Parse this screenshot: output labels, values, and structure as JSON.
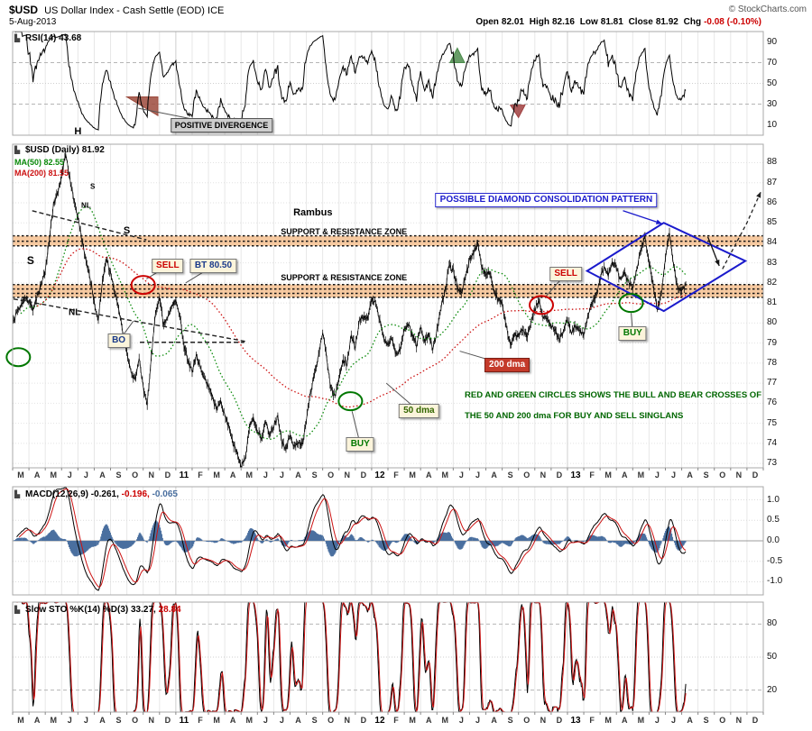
{
  "header": {
    "symbol": "$USD",
    "description": "US Dollar Index - Cash Settle (EOD)",
    "exchange": "ICE",
    "copyright": "© StockCharts.com",
    "date": "5-Aug-2013",
    "ohlc": {
      "open_label": "Open",
      "open": "82.01",
      "high_label": "High",
      "high": "82.16",
      "low_label": "Low",
      "low": "81.81",
      "close_label": "Close",
      "close": "81.92",
      "chg_label": "Chg",
      "chg": "-0.08 (-0.10%)"
    }
  },
  "icons": {
    "panel": "▙"
  },
  "legends": {
    "rsi": {
      "name": "RSI(14)",
      "val": "43.68"
    },
    "price": {
      "name": "$USD (Daily)",
      "val": "81.92"
    },
    "ma50": "MA(50) 82.55",
    "ma200": "MA(200) 81.55",
    "macd": {
      "name": "MACD(12,26,9)",
      "v1": "-0.261,",
      "v2": "-0.196,",
      "v3": "-0.065"
    },
    "sto": {
      "name": "Slow STO %K(14) %D(3)",
      "v1": "33.27,",
      "v2": "28.84"
    }
  },
  "chart_data": {
    "type": "line",
    "title": "$USD US Dollar Index - Cash Settle (EOD) ICE",
    "x_months": [
      "M",
      "A",
      "M",
      "J",
      "J",
      "A",
      "S",
      "O",
      "N",
      "D",
      "11",
      "F",
      "M",
      "A",
      "M",
      "J",
      "J",
      "A",
      "S",
      "O",
      "N",
      "D",
      "12",
      "F",
      "M",
      "A",
      "M",
      "J",
      "J",
      "A",
      "S",
      "O",
      "N",
      "D",
      "13",
      "F",
      "M",
      "A",
      "M",
      "J",
      "J",
      "A",
      "S",
      "O",
      "N",
      "D"
    ],
    "samples_per_month": 4,
    "price_weekly_close": [
      80.0,
      80.5,
      80.9,
      81.3,
      81.1,
      80.7,
      81.3,
      81.9,
      82.6,
      84.2,
      85.9,
      86.5,
      87.3,
      88.5,
      87.2,
      86.2,
      85.3,
      84.1,
      83.1,
      82.3,
      81.0,
      80.2,
      82.1,
      83.2,
      82.5,
      81.6,
      80.7,
      79.6,
      78.5,
      77.6,
      77.1,
      78.2,
      76.8,
      75.9,
      78.3,
      80.5,
      81.3,
      79.9,
      80.3,
      80.9,
      81.1,
      80.3,
      78.9,
      78.1,
      77.6,
      78.4,
      77.8,
      77.2,
      76.9,
      76.3,
      75.7,
      76.1,
      75.4,
      74.8,
      74.0,
      73.5,
      72.9,
      73.2,
      74.8,
      75.3,
      74.6,
      74.2,
      75.1,
      74.4,
      74.9,
      75.3,
      74.1,
      73.7,
      74.4,
      73.8,
      74.1,
      73.9,
      75.2,
      76.5,
      77.5,
      78.3,
      79.6,
      78.2,
      76.8,
      76.3,
      77.2,
      78.1,
      78.0,
      79.4,
      78.8,
      80.1,
      80.3,
      80.2,
      81.2,
      81.0,
      80.1,
      79.2,
      78.9,
      79.2,
      78.4,
      78.7,
      79.7,
      80.0,
      79.4,
      78.9,
      79.8,
      79.1,
      79.4,
      78.7,
      79.6,
      80.8,
      81.6,
      82.9,
      82.6,
      81.8,
      81.5,
      82.3,
      83.2,
      83.5,
      84.0,
      82.8,
      82.4,
      82.6,
      81.5,
      81.2,
      81.0,
      79.8,
      78.9,
      79.4,
      79.4,
      79.7,
      79.3,
      80.0,
      80.7,
      81.1,
      80.3,
      80.2,
      79.9,
      79.6,
      79.2,
      79.6,
      80.2,
      79.5,
      79.8,
      79.6,
      79.4,
      80.3,
      81.0,
      81.4,
      82.2,
      82.8,
      82.4,
      83.0,
      82.8,
      82.1,
      82.6,
      82.0,
      81.8,
      82.7,
      83.7,
      84.3,
      83.0,
      81.9,
      80.7,
      81.4,
      83.3,
      84.5,
      82.9,
      81.8,
      81.6,
      81.92
    ],
    "price_ylim": [
      72.78,
      88.92
    ],
    "price_ticks": [
      88,
      87,
      86,
      85,
      84,
      83,
      82,
      81,
      80,
      79,
      78,
      77,
      76,
      75,
      74,
      73
    ],
    "rsi": {
      "period": 14,
      "value": 43.68,
      "ticks": [
        90,
        70,
        50,
        30,
        10
      ]
    },
    "ma50": {
      "period": 50,
      "value": 82.55
    },
    "ma200": {
      "period": 200,
      "value": 81.55
    },
    "macd": {
      "fast": 12,
      "slow": 26,
      "signal": 9,
      "values": [
        -0.261,
        -0.196,
        -0.065
      ],
      "ticks": [
        "1.0",
        "0.5",
        "0.0",
        "-0.5",
        "-1.0"
      ]
    },
    "sto": {
      "k": 14,
      "d": 3,
      "values": [
        33.27,
        28.84
      ],
      "ticks": [
        80,
        50,
        20
      ]
    },
    "colors": {
      "zone": "#F6C9A0",
      "ma50": "#0B8A0B",
      "ma200": "#CC1111",
      "macd_hist": "#4A6F9F",
      "diamond": "#1A1ACC",
      "sell": "#CC0000",
      "buy": "#007700",
      "chg_negative": "#CC0000"
    },
    "zones": [
      {
        "from": 84.35,
        "to": 83.85,
        "lines": [
          84.35,
          84.08,
          83.85
        ]
      },
      {
        "from": 81.92,
        "to": 81.28,
        "lines": [
          81.92,
          81.7,
          81.48,
          81.28
        ]
      }
    ],
    "annotations": {
      "zone_labels": [
        {
          "t": "SUPPORT & RESISTANCE ZONE",
          "m": 20.3,
          "p": 84.55
        },
        {
          "t": "SUPPORT & RESISTANCE ZONE",
          "m": 20.3,
          "p": 82.28
        }
      ],
      "diamond": [
        [
          35.2,
          82.6
        ],
        [
          39.9,
          85.0
        ],
        [
          44.9,
          83.1
        ],
        [
          39.9,
          80.6
        ]
      ],
      "diamond_label": {
        "t": "POSSIBLE DIAMOND CONSOLIDATION PATTERN",
        "m": 32.7,
        "p": 86.15
      },
      "trendlines": [
        [
          [
            1.2,
            85.6
          ],
          [
            8.2,
            84.15
          ]
        ],
        [
          [
            0.05,
            81.2
          ],
          [
            14.3,
            79.08
          ]
        ],
        [
          [
            7.8,
            79.04
          ],
          [
            14.2,
            79.04
          ]
        ]
      ],
      "arrows": [
        {
          "pts": [
            [
              43.5,
              82.7
            ],
            [
              45.0,
              85.0
            ],
            [
              45.85,
              86.55
            ]
          ],
          "dash": true,
          "c": "#222222",
          "name": "projection-arrow"
        },
        {
          "pts": [
            [
              42.6,
              84.3
            ],
            [
              43.3,
              82.85
            ]
          ],
          "dash": false,
          "c": "#111111",
          "name": "pullback-arrow"
        },
        {
          "pts": [
            [
              37.4,
              85.6
            ],
            [
              39.8,
              84.95
            ]
          ],
          "dash": false,
          "c": "#1A1ACC",
          "name": "diamond-pointer-arrow"
        }
      ],
      "circles": [
        {
          "m": 8.0,
          "p": 81.9,
          "c": "#CC0000",
          "name": "sell-cross-circle-2010"
        },
        {
          "m": 32.4,
          "p": 80.9,
          "c": "#CC0000",
          "name": "sell-cross-circle-2012"
        },
        {
          "m": 0.35,
          "p": 78.3,
          "c": "#007700",
          "name": "buy-cross-circle-2010"
        },
        {
          "m": 20.7,
          "p": 76.1,
          "c": "#007700",
          "name": "buy-cross-circle-2011"
        },
        {
          "m": 37.9,
          "p": 81.0,
          "c": "#007700",
          "name": "buy-cross-circle-2013"
        }
      ],
      "boxes": [
        {
          "t": "SELL",
          "name": "sell-label-2010",
          "m": 9.5,
          "p": 82.85,
          "cls": "sell",
          "tail": [
            8.2,
            82.2
          ]
        },
        {
          "t": "BT 80.50",
          "name": "backtest-label",
          "m": 12.3,
          "p": 82.85,
          "cls": "nav",
          "tail": [
            10.6,
            82.0
          ]
        },
        {
          "t": "BO",
          "name": "breakout-label",
          "m": 6.5,
          "p": 79.1,
          "cls": "nav",
          "tail": [
            7.4,
            80.1
          ]
        },
        {
          "t": "SELL",
          "name": "sell-label-2012",
          "m": 33.9,
          "p": 82.45,
          "cls": "sell",
          "tail": [
            32.7,
            81.35
          ]
        },
        {
          "t": "BUY",
          "name": "buy-label-2011",
          "m": 21.3,
          "p": 73.95,
          "cls": "buy",
          "tail": [
            20.8,
            75.6
          ]
        },
        {
          "t": "BUY",
          "name": "buy-label-2013",
          "m": 38.0,
          "p": 79.5,
          "cls": "buy",
          "tail": [
            37.9,
            80.5
          ]
        },
        {
          "t": "200 dma",
          "name": "dma200-label",
          "m": 30.3,
          "p": 77.9,
          "cls": "dma200",
          "tail": [
            27.4,
            78.6
          ]
        },
        {
          "t": "50 dma",
          "name": "dma50-label",
          "m": 24.9,
          "p": 75.6,
          "cls": "dma50",
          "tail": [
            22.9,
            77.0
          ]
        }
      ],
      "texts": [
        {
          "t": "Rambus",
          "name": "rambus-watermark",
          "m": 18.4,
          "p": 85.5,
          "size": 11
        },
        {
          "t": "H",
          "name": "head-label",
          "m": 4.0,
          "p": 89.55,
          "size": 11
        },
        {
          "t": "S",
          "name": "left-shoulder-label",
          "m": 1.1,
          "p": 83.1,
          "size": 12
        },
        {
          "t": "S",
          "name": "right-shoulder-label",
          "m": 7.0,
          "p": 84.6,
          "size": 11
        },
        {
          "t": "S",
          "name": "small-shoulder-label",
          "m": 4.9,
          "p": 86.8,
          "size": 8
        },
        {
          "t": "NL",
          "name": "neckline-label-upper",
          "m": 4.5,
          "p": 85.85,
          "size": 8
        },
        {
          "t": "NL",
          "name": "neckline-label",
          "m": 3.8,
          "p": 80.5,
          "size": 10
        }
      ],
      "note": {
        "m": 27.7,
        "p1": 76.4,
        "p2": 75.4,
        "lines": [
          "RED AND GREEN CIRCLES SHOWS THE BULL AND BEAR CROSSES OF",
          "THE 50 AND 200 dma FOR BUY AND SELL SINGLANS"
        ]
      },
      "rsi_box": {
        "t": "POSITIVE DIVERGENCE",
        "m": 12.8,
        "v": 10,
        "tail": [
          7.7,
          26
        ]
      },
      "rsi_patches": [
        {
          "pts": [
            [
              7.0,
              37
            ],
            [
              8.9,
              37
            ],
            [
              8.9,
              19
            ]
          ],
          "c": "#9C4A3C"
        },
        {
          "pts": [
            [
              26.8,
              70
            ],
            [
              27.25,
              84
            ],
            [
              27.7,
              70
            ]
          ],
          "c": "#4C8C4C"
        },
        {
          "pts": [
            [
              30.5,
              29
            ],
            [
              31.4,
              29
            ],
            [
              31.0,
              17
            ]
          ],
          "c": "#A04040"
        }
      ]
    }
  }
}
